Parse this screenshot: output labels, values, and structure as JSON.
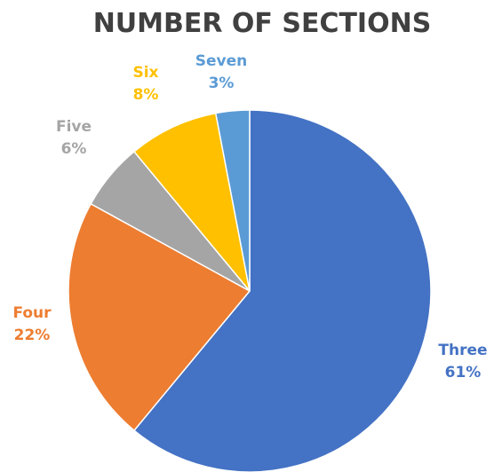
{
  "chart_data": {
    "type": "pie",
    "title": "NUMBER OF SECTIONS",
    "start_angle_deg": 0,
    "direction": "clockwise",
    "slices": [
      {
        "label": "Three",
        "percent_label": "61%",
        "value": 61,
        "color": "#4472C4"
      },
      {
        "label": "Four",
        "percent_label": "22%",
        "value": 22,
        "color": "#ED7D31"
      },
      {
        "label": "Five",
        "percent_label": "6%",
        "value": 6,
        "color": "#A5A5A5"
      },
      {
        "label": "Six",
        "percent_label": "8%",
        "value": 8,
        "color": "#FFC000"
      },
      {
        "label": "Seven",
        "percent_label": "3%",
        "value": 3,
        "color": "#5B9BD5"
      }
    ]
  }
}
